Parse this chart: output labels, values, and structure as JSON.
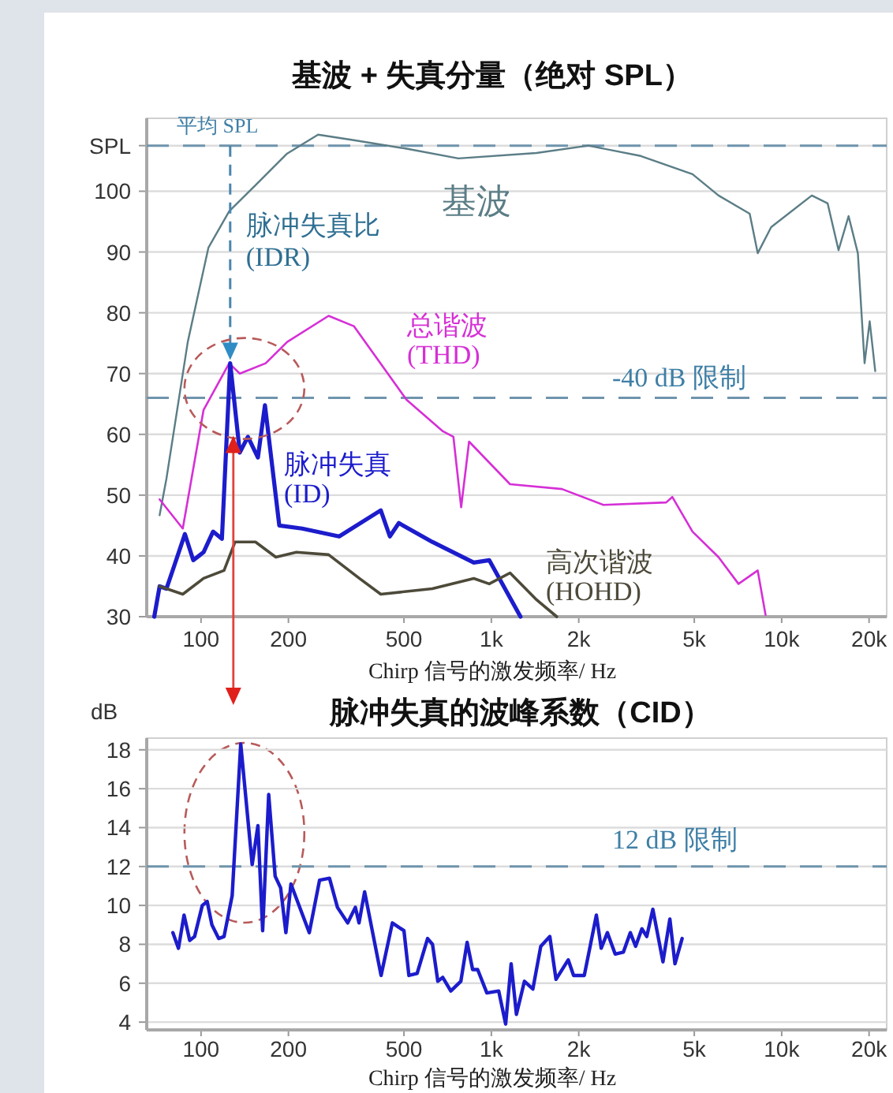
{
  "chart_data": [
    {
      "type": "line",
      "title": "基波 + 失真分量（绝对 SPL）",
      "xlabel": "Chirp 信号的激发频率/ Hz",
      "log": "x",
      "xlim": [
        65,
        23000
      ],
      "xticks": [
        100,
        200,
        500,
        {
          "value": 1000,
          "label": "1k"
        },
        {
          "value": 2000,
          "label": "2k"
        },
        {
          "value": 5000,
          "label": "5k"
        },
        {
          "value": 10000,
          "label": "10k"
        },
        {
          "value": 20000,
          "label": "20k"
        }
      ],
      "ylim": [
        30,
        112
      ],
      "yticks": [
        30,
        40,
        50,
        60,
        70,
        80,
        90,
        100,
        {
          "value": 107.5,
          "label": "SPL"
        }
      ],
      "grid": "y",
      "line_style": "solid",
      "ref_lines": [
        {
          "axis": "y",
          "value": 107.5,
          "label": "平均 SPL",
          "color": "#6f94ad",
          "line_style": "dashed"
        },
        {
          "axis": "y",
          "value": 66,
          "label": "-40 dB 限制",
          "color": "#6f94ad",
          "line_style": "dashed"
        }
      ],
      "annotations": [
        "脉冲失真比 (IDR)"
      ],
      "series": [
        {
          "name": "基波",
          "color": "#5b7d86",
          "x": [
            72,
            76,
            90,
            106,
            125,
            154,
            198,
            253,
            336,
            510,
            770,
            1430,
            2160,
            3270,
            4930,
            6060,
            7760,
            8270,
            9200,
            12700,
            14400,
            15700,
            17000,
            18300,
            19300,
            20100,
            21000
          ],
          "values": [
            46.7,
            52.7,
            75.2,
            90.7,
            96.7,
            101,
            106.2,
            109.3,
            108.4,
            107,
            105.4,
            106.3,
            107.5,
            105.8,
            102.8,
            99.3,
            96.3,
            89.8,
            94.1,
            99.3,
            98,
            90.3,
            95.9,
            89.8,
            71.7,
            78.6,
            70.4
          ]
        },
        {
          "name": "总谐波 (THD)",
          "color": "#d62fd6",
          "x": [
            72,
            86.5,
            102,
            125,
            136,
            167,
            198,
            275,
            336,
            510,
            681,
            740,
            787,
            838,
            1160,
            1750,
            2430,
            4000,
            4200,
            4930,
            6060,
            7100,
            8270,
            8800
          ],
          "values": [
            49.3,
            44.5,
            64,
            71.7,
            70,
            71.7,
            75.2,
            79.5,
            77.8,
            65.7,
            60.5,
            59.6,
            48,
            58.8,
            51.8,
            51,
            48.4,
            48.8,
            49.7,
            44,
            39.8,
            35.4,
            37.6,
            30.3
          ]
        },
        {
          "name": "脉冲失真 (ID)",
          "color": "#1c1ccc",
          "x": [
            69,
            72,
            76,
            81,
            88,
            94,
            102,
            110,
            118,
            126,
            136,
            145,
            157,
            166,
            186,
            223,
            299,
            416,
            447,
            480,
            626,
            870,
            983,
            1260
          ],
          "values": [
            30,
            35,
            34.6,
            38.5,
            43.6,
            39.3,
            40.6,
            44,
            42.8,
            71.7,
            57,
            59.6,
            56.2,
            64.8,
            45,
            44.5,
            43.2,
            47.5,
            43.2,
            45.4,
            42.3,
            38.9,
            39.3,
            30
          ]
        },
        {
          "name": "高次谐波 (HOHD)",
          "color": "#4d4a3a",
          "x": [
            72,
            86.5,
            102,
            120,
            131,
            154,
            181,
            213,
            275,
            351,
            416,
            626,
            870,
            983,
            1160,
            1430,
            1680
          ],
          "values": [
            35,
            33.7,
            36.3,
            37.6,
            42.3,
            42.3,
            39.8,
            40.6,
            40.2,
            36.3,
            33.7,
            34.6,
            36.3,
            35.4,
            37.2,
            32.8,
            30
          ]
        }
      ]
    },
    {
      "type": "line",
      "title": "脉冲失真的波峰系数（CID）",
      "xlabel": "Chirp 信号的激发频率/ Hz",
      "ylabel": "dB",
      "log": "x",
      "xlim": [
        65,
        23000
      ],
      "xticks": [
        100,
        200,
        500,
        {
          "value": 1000,
          "label": "1k"
        },
        {
          "value": 2000,
          "label": "2k"
        },
        {
          "value": 5000,
          "label": "5k"
        },
        {
          "value": 10000,
          "label": "10k"
        },
        {
          "value": 20000,
          "label": "20k"
        }
      ],
      "ylim": [
        3.6,
        18.6
      ],
      "yticks": [
        4,
        6,
        8,
        10,
        12,
        14,
        16,
        18
      ],
      "grid": "y",
      "line_style": "solid",
      "ref_lines": [
        {
          "axis": "y",
          "value": 12,
          "label": "12 dB 限制",
          "color": "#6f94ad",
          "line_style": "dashed"
        }
      ],
      "series": [
        {
          "color": "#1c1ccc",
          "x": [
            80,
            83.6,
            87.4,
            91.4,
            95,
            101,
            105,
            109,
            115,
            120,
            128,
            137,
            150,
            157,
            163,
            171,
            180,
            188,
            196,
            204,
            236,
            256,
            277,
            295,
            320,
            340,
            350,
            366,
            417,
            456,
            500,
            520,
            555,
            603,
            627,
            654,
            680,
            725,
            785,
            825,
            862,
            897,
            965,
            1060,
            1120,
            1170,
            1220,
            1300,
            1390,
            1480,
            1590,
            1670,
            1840,
            1920,
            2090,
            2300,
            2390,
            2510,
            2670,
            2850,
            3010,
            3140,
            3300,
            3430,
            3600,
            3900,
            4120,
            4290,
            4540
          ],
          "values": [
            8.6,
            7.8,
            9.5,
            8.2,
            8.4,
            10,
            10.2,
            9,
            8.3,
            8.4,
            10.5,
            18.3,
            12.1,
            14.1,
            8.7,
            15.7,
            11.5,
            10.9,
            8.6,
            11.1,
            8.6,
            11.3,
            11.4,
            9.9,
            9.1,
            9.9,
            9.1,
            10.7,
            6.4,
            9.1,
            8.7,
            6.4,
            6.5,
            8.3,
            8,
            6.1,
            6.3,
            5.6,
            6.1,
            8.1,
            6.7,
            6.7,
            5.5,
            5.6,
            3.9,
            7,
            4.4,
            6.1,
            5.7,
            7.9,
            8.4,
            6.2,
            7.2,
            6.4,
            6.4,
            9.5,
            7.8,
            8.6,
            7.5,
            7.6,
            8.6,
            7.9,
            8.8,
            8.4,
            9.8,
            7.1,
            9.3,
            7,
            8.3
          ]
        }
      ]
    }
  ]
}
